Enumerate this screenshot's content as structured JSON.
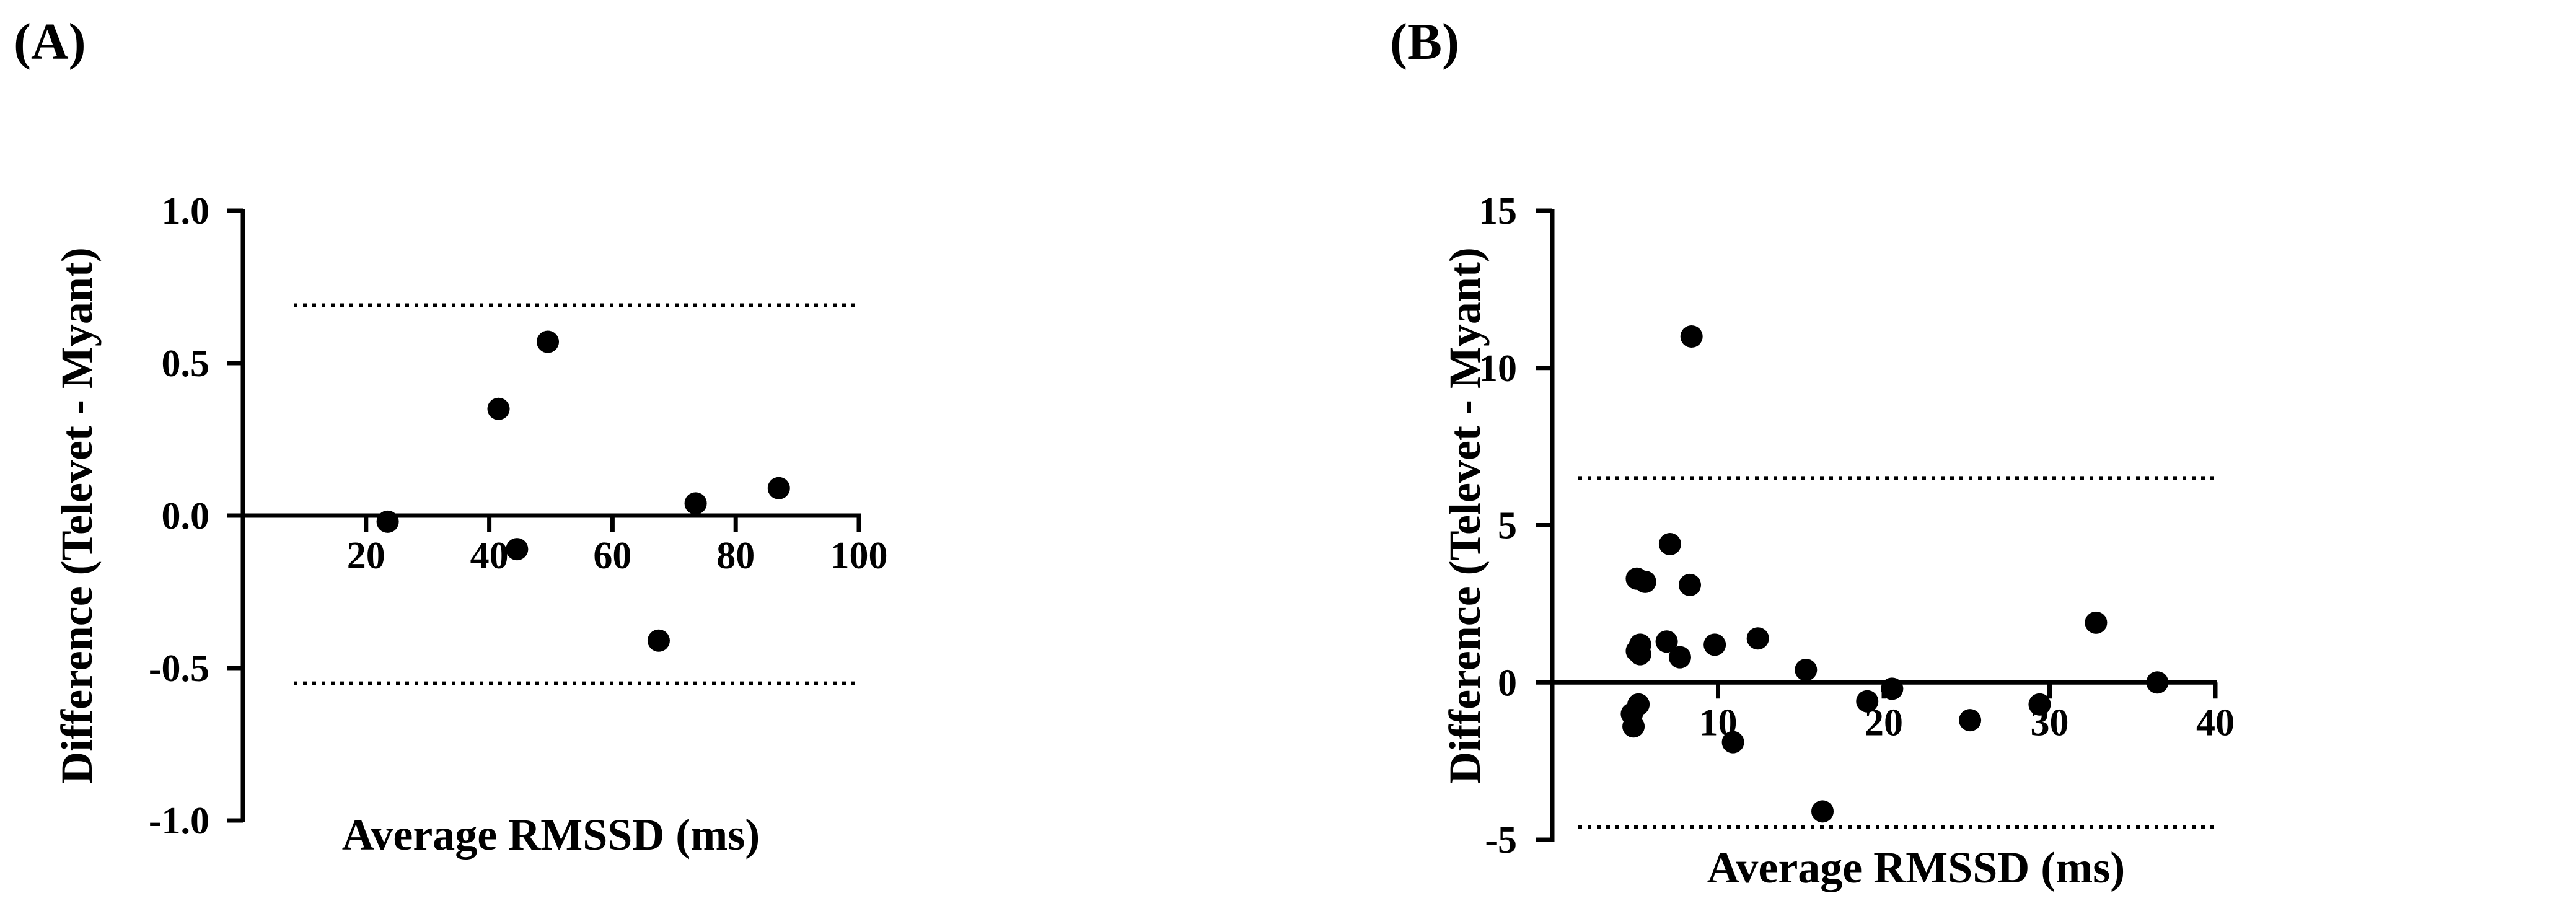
{
  "chart_data": [
    {
      "type": "scatter",
      "panel_label": "(A)",
      "xlabel": "Average RMSSD (ms)",
      "ylabel": "Difference (Televet - Myant)",
      "xlim": [
        0,
        100
      ],
      "ylim": [
        -1.0,
        1.0
      ],
      "xticks": [
        20,
        40,
        60,
        80,
        100
      ],
      "yticks": [
        1.0,
        0.5,
        0.0,
        -0.5,
        -1.0
      ],
      "x_tick_labels": [
        "20",
        "40",
        "60",
        "80",
        "100"
      ],
      "y_tick_labels": [
        "1.0",
        "0.5",
        "0.0",
        "-0.5",
        "-1.0"
      ],
      "reference_lines": [
        0.69,
        -0.55
      ],
      "points": [
        {
          "x": 23.5,
          "y": -0.02
        },
        {
          "x": 41.5,
          "y": 0.35
        },
        {
          "x": 44.5,
          "y": -0.11
        },
        {
          "x": 49.5,
          "y": 0.57
        },
        {
          "x": 67.5,
          "y": -0.41
        },
        {
          "x": 73.5,
          "y": 0.04
        },
        {
          "x": 87.0,
          "y": 0.09
        }
      ]
    },
    {
      "type": "scatter",
      "panel_label": "(B)",
      "xlabel": "Average RMSSD (ms)",
      "ylabel": "Difference (Televet - Myant)",
      "xlim": [
        0,
        40
      ],
      "ylim": [
        -5,
        15
      ],
      "xticks": [
        10,
        20,
        30,
        40
      ],
      "yticks": [
        15,
        10,
        5,
        0,
        -5
      ],
      "x_tick_labels": [
        "10",
        "20",
        "30",
        "40"
      ],
      "y_tick_labels": [
        "15",
        "10",
        "5",
        "0",
        "-5"
      ],
      "reference_lines": [
        6.5,
        -4.6
      ],
      "points": [
        {
          "x": 8.4,
          "y": 11.0
        },
        {
          "x": 7.1,
          "y": 4.4
        },
        {
          "x": 5.1,
          "y": 3.3
        },
        {
          "x": 5.6,
          "y": 3.2
        },
        {
          "x": 8.3,
          "y": 3.1
        },
        {
          "x": 6.9,
          "y": 1.3
        },
        {
          "x": 12.4,
          "y": 1.4
        },
        {
          "x": 5.3,
          "y": 1.2
        },
        {
          "x": 9.8,
          "y": 1.2
        },
        {
          "x": 5.1,
          "y": 1.0
        },
        {
          "x": 5.3,
          "y": 0.9
        },
        {
          "x": 7.7,
          "y": 0.8
        },
        {
          "x": 15.3,
          "y": 0.4
        },
        {
          "x": 20.5,
          "y": -0.2
        },
        {
          "x": 36.5,
          "y": 0.0
        },
        {
          "x": 32.8,
          "y": 1.9
        },
        {
          "x": 5.2,
          "y": -0.7
        },
        {
          "x": 4.8,
          "y": -1.0
        },
        {
          "x": 4.9,
          "y": -1.4
        },
        {
          "x": 10.9,
          "y": -1.9
        },
        {
          "x": 19.0,
          "y": -0.6
        },
        {
          "x": 25.2,
          "y": -1.2
        },
        {
          "x": 29.4,
          "y": -0.7
        },
        {
          "x": 16.3,
          "y": -4.1
        }
      ]
    }
  ]
}
